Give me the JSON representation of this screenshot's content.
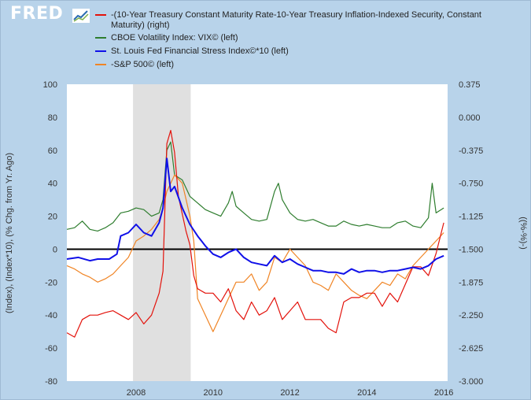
{
  "brand": {
    "name": "FRED"
  },
  "legend": [
    {
      "name": "legend-series-1",
      "text": "-(10-Year Treasury Constant Maturity Rate-10-Year Treasury Inflation-Indexed Security, Constant",
      "text2": "Maturity) (right)",
      "color": "#e3120b"
    },
    {
      "name": "legend-series-2",
      "text": "CBOE Volatility Index: VIX© (left)",
      "color": "#2e7d2e"
    },
    {
      "name": "legend-series-3",
      "text": "St. Louis Fed Financial Stress Index©*10 (left)",
      "color": "#1010e8"
    },
    {
      "name": "legend-series-4",
      "text": "-S&P 500© (left)",
      "color": "#f08424"
    }
  ],
  "chart_data": {
    "type": "line",
    "title": "",
    "xlabel": "",
    "ylabel_left": "(Index), (Index*10), (% Chg. from Yr. Ago)",
    "ylabel_right": "((%-%)-)",
    "xlim": [
      2006.2,
      2016.1
    ],
    "ylim_left": [
      -80,
      100
    ],
    "ylim_right": [
      -3.0,
      0.375
    ],
    "x_ticks": [
      2008,
      2010,
      2012,
      2014,
      2016
    ],
    "x_tick_labels": [
      "2008",
      "2010",
      "2012",
      "2014",
      "2016"
    ],
    "y_ticks_left": [
      100,
      80,
      60,
      40,
      20,
      0,
      -20,
      -40,
      -60,
      -80
    ],
    "y_tick_labels_left": [
      "100",
      "80",
      "60",
      "40",
      "20",
      "0",
      "-20",
      "-40",
      "-60",
      "-80"
    ],
    "y_ticks_right": [
      0.375,
      0.0,
      -0.375,
      -0.75,
      -1.125,
      -1.5,
      -1.875,
      -2.25,
      -2.625,
      -3.0
    ],
    "y_tick_labels_right": [
      "0.375",
      "0.000",
      "-0.375",
      "-0.750",
      "-1.125",
      "-1.500",
      "-1.875",
      "-2.250",
      "-2.625",
      "-3.000"
    ],
    "shaded_region": {
      "x": [
        2007.92,
        2009.42
      ],
      "label": "recession",
      "color": "#e0e0e0"
    },
    "zero_line_left": 0,
    "series": [
      {
        "name": "-(10-Year Treasury Constant Maturity Rate-10-Year Treasury Inflation-Indexed Security, Constant Maturity) (right)",
        "axis": "right",
        "color": "#e3120b",
        "x": [
          2006.2,
          2006.4,
          2006.6,
          2006.8,
          2007.0,
          2007.2,
          2007.4,
          2007.6,
          2007.8,
          2008.0,
          2008.2,
          2008.4,
          2008.6,
          2008.7,
          2008.8,
          2008.9,
          2009.0,
          2009.1,
          2009.2,
          2009.3,
          2009.4,
          2009.5,
          2009.6,
          2009.8,
          2010.0,
          2010.2,
          2010.4,
          2010.6,
          2010.8,
          2011.0,
          2011.2,
          2011.4,
          2011.6,
          2011.8,
          2012.0,
          2012.2,
          2012.4,
          2012.6,
          2012.8,
          2013.0,
          2013.2,
          2013.4,
          2013.6,
          2013.8,
          2014.0,
          2014.2,
          2014.4,
          2014.6,
          2014.8,
          2015.0,
          2015.2,
          2015.4,
          2015.6,
          2015.8,
          2016.0
        ],
        "y": [
          -2.45,
          -2.5,
          -2.3,
          -2.25,
          -2.25,
          -2.22,
          -2.2,
          -2.25,
          -2.3,
          -2.22,
          -2.35,
          -2.25,
          -2.0,
          -1.75,
          -0.3,
          -0.15,
          -0.4,
          -0.9,
          -1.1,
          -1.3,
          -1.45,
          -1.8,
          -1.95,
          -2.0,
          -2.0,
          -2.1,
          -1.95,
          -2.2,
          -2.3,
          -2.1,
          -2.25,
          -2.2,
          -2.05,
          -2.3,
          -2.2,
          -2.1,
          -2.3,
          -2.3,
          -2.3,
          -2.4,
          -2.45,
          -2.1,
          -2.05,
          -2.05,
          -2.0,
          -2.0,
          -2.15,
          -2.0,
          -2.1,
          -1.9,
          -1.7,
          -1.7,
          -1.8,
          -1.55,
          -1.2
        ]
      },
      {
        "name": "CBOE Volatility Index: VIX© (left)",
        "axis": "left",
        "color": "#2e7d2e",
        "x": [
          2006.2,
          2006.4,
          2006.6,
          2006.8,
          2007.0,
          2007.2,
          2007.4,
          2007.6,
          2007.8,
          2008.0,
          2008.2,
          2008.4,
          2008.6,
          2008.7,
          2008.8,
          2008.9,
          2009.0,
          2009.2,
          2009.4,
          2009.6,
          2009.8,
          2010.0,
          2010.2,
          2010.4,
          2010.5,
          2010.6,
          2010.8,
          2011.0,
          2011.2,
          2011.4,
          2011.6,
          2011.7,
          2011.8,
          2012.0,
          2012.2,
          2012.4,
          2012.6,
          2012.8,
          2013.0,
          2013.2,
          2013.4,
          2013.6,
          2013.8,
          2014.0,
          2014.2,
          2014.4,
          2014.6,
          2014.8,
          2015.0,
          2015.2,
          2015.4,
          2015.6,
          2015.7,
          2015.8,
          2016.0
        ],
        "y": [
          12,
          13,
          17,
          12,
          11,
          13,
          16,
          22,
          23,
          25,
          24,
          20,
          22,
          30,
          60,
          65,
          45,
          42,
          32,
          28,
          24,
          22,
          20,
          28,
          35,
          26,
          22,
          18,
          17,
          18,
          35,
          40,
          30,
          22,
          18,
          17,
          18,
          16,
          14,
          14,
          17,
          15,
          14,
          15,
          14,
          13,
          13,
          16,
          17,
          14,
          13,
          19,
          40,
          22,
          25
        ]
      },
      {
        "name": "St. Louis Fed Financial Stress Index©*10 (left)",
        "axis": "left",
        "color": "#1010e8",
        "x": [
          2006.2,
          2006.5,
          2006.8,
          2007.0,
          2007.3,
          2007.5,
          2007.6,
          2007.8,
          2008.0,
          2008.2,
          2008.4,
          2008.6,
          2008.7,
          2008.8,
          2008.9,
          2009.0,
          2009.2,
          2009.4,
          2009.6,
          2009.8,
          2010.0,
          2010.2,
          2010.4,
          2010.6,
          2010.8,
          2011.0,
          2011.2,
          2011.4,
          2011.6,
          2011.8,
          2012.0,
          2012.2,
          2012.4,
          2012.6,
          2012.8,
          2013.0,
          2013.2,
          2013.4,
          2013.6,
          2013.8,
          2014.0,
          2014.2,
          2014.4,
          2014.6,
          2014.8,
          2015.0,
          2015.2,
          2015.4,
          2015.6,
          2015.8,
          2016.0
        ],
        "y": [
          -6,
          -5,
          -7,
          -6,
          -6,
          -3,
          8,
          10,
          15,
          10,
          8,
          16,
          25,
          55,
          35,
          38,
          25,
          15,
          8,
          2,
          -3,
          -5,
          -2,
          0,
          -5,
          -8,
          -9,
          -10,
          -4,
          -8,
          -6,
          -9,
          -11,
          -13,
          -13,
          -14,
          -14,
          -15,
          -12,
          -14,
          -13,
          -13,
          -14,
          -13,
          -13,
          -12,
          -11,
          -12,
          -10,
          -6,
          -4
        ]
      },
      {
        "name": "-S&P 500© (left)",
        "axis": "left",
        "color": "#f08424",
        "x": [
          2006.2,
          2006.4,
          2006.6,
          2006.8,
          2007.0,
          2007.2,
          2007.4,
          2007.6,
          2007.8,
          2008.0,
          2008.2,
          2008.4,
          2008.6,
          2008.7,
          2008.8,
          2008.9,
          2009.0,
          2009.2,
          2009.3,
          2009.4,
          2009.5,
          2009.6,
          2009.8,
          2010.0,
          2010.2,
          2010.4,
          2010.6,
          2010.8,
          2011.0,
          2011.2,
          2011.4,
          2011.6,
          2011.8,
          2012.0,
          2012.2,
          2012.4,
          2012.6,
          2012.8,
          2013.0,
          2013.2,
          2013.4,
          2013.6,
          2013.8,
          2014.0,
          2014.2,
          2014.4,
          2014.6,
          2014.8,
          2015.0,
          2015.2,
          2015.4,
          2015.6,
          2015.8,
          2016.0
        ],
        "y": [
          -10,
          -12,
          -15,
          -17,
          -20,
          -18,
          -15,
          -10,
          -5,
          5,
          8,
          12,
          18,
          25,
          35,
          40,
          45,
          40,
          30,
          20,
          5,
          -30,
          -40,
          -50,
          -40,
          -30,
          -20,
          -20,
          -15,
          -25,
          -20,
          -5,
          -8,
          0,
          -5,
          -10,
          -20,
          -22,
          -25,
          -15,
          -20,
          -25,
          -28,
          -30,
          -25,
          -20,
          -22,
          -15,
          -18,
          -10,
          -5,
          0,
          5,
          10
        ]
      }
    ]
  }
}
